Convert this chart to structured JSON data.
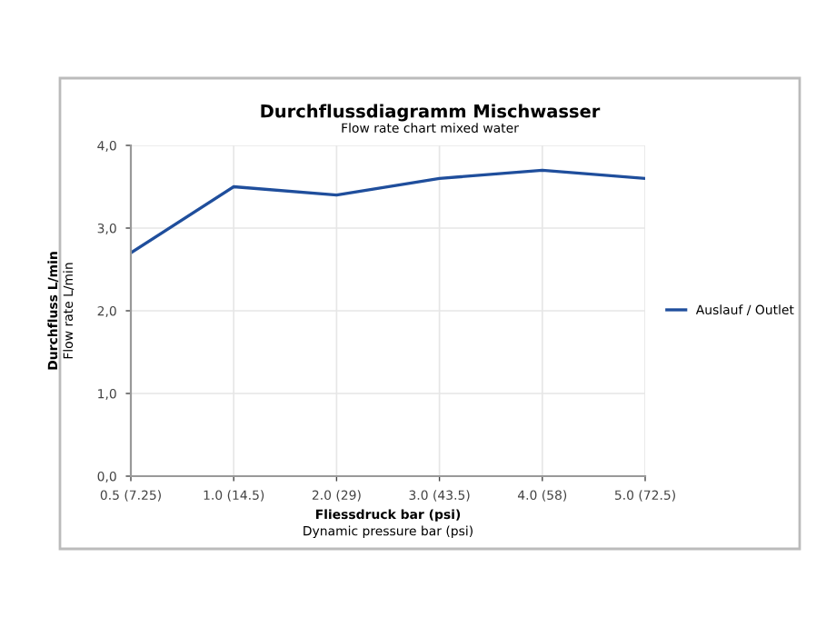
{
  "chart_data": {
    "type": "line",
    "title": "Durchflussdiagramm Mischwasser",
    "subtitle": "Flow rate chart mixed water",
    "xlabel": "Fliessdruck bar (psi)\nDynamic pressure bar (psi)",
    "ylabel": "Durchfluss L/min\nFlow rate L/min",
    "categories": [
      "0.5 (7.25)",
      "1.0 (14.5)",
      "2.0 (29)",
      "3.0 (43.5)",
      "4.0 (58)",
      "5.0 (72.5)"
    ],
    "series": [
      {
        "name": "Auslauf / Outlet",
        "color": "#1f4e9c",
        "values": [
          2.7,
          3.5,
          3.4,
          3.6,
          3.7,
          3.6
        ]
      }
    ],
    "ylim": [
      0,
      4
    ],
    "yticks": [
      {
        "value": 0,
        "label": "0,0"
      },
      {
        "value": 1,
        "label": "1,0"
      },
      {
        "value": 2,
        "label": "2,0"
      },
      {
        "value": 3,
        "label": "3,0"
      },
      {
        "value": 4,
        "label": "4,0"
      }
    ],
    "grid": true,
    "legend": "right",
    "marker": "none",
    "line_style": "solid"
  }
}
